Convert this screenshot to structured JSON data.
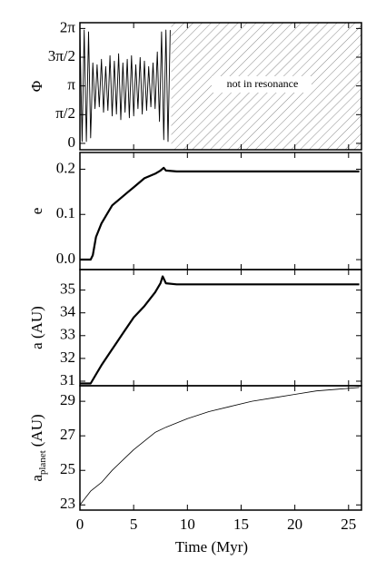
{
  "chart_data": [
    {
      "type": "line",
      "ylabel": "Φ",
      "annotation": "not in resonance",
      "hatch_start": 8.5,
      "xlim": [
        0,
        26.2
      ],
      "xticks": [
        0,
        5,
        10,
        15,
        20,
        25
      ],
      "ylim": [
        -0.35,
        6.6
      ],
      "yticks": [
        {
          "value": 0,
          "label": "0"
        },
        {
          "value": 1.5708,
          "label": "π/2"
        },
        {
          "value": 3.1416,
          "label": "π"
        },
        {
          "value": 4.7124,
          "label": "3π/2"
        },
        {
          "value": 6.2832,
          "label": "2π"
        }
      ],
      "x": [
        0,
        0.2,
        0.4,
        0.6,
        0.8,
        1.0,
        1.2,
        1.4,
        1.6,
        1.8,
        2.0,
        2.2,
        2.4,
        2.6,
        2.8,
        3.0,
        3.2,
        3.4,
        3.6,
        3.8,
        4.0,
        4.2,
        4.4,
        4.6,
        4.8,
        5.0,
        5.2,
        5.4,
        5.6,
        5.8,
        6.0,
        6.2,
        6.4,
        6.6,
        6.8,
        7.0,
        7.2,
        7.4,
        7.6,
        7.8,
        8.0,
        8.2,
        8.4
      ],
      "values": [
        6.2,
        0.1,
        6.2,
        0.1,
        6.1,
        0.3,
        4.4,
        1.9,
        4.3,
        2.0,
        4.6,
        1.7,
        4.2,
        1.8,
        4.8,
        1.5,
        4.5,
        1.6,
        4.9,
        1.3,
        4.4,
        1.7,
        4.6,
        1.4,
        4.8,
        1.5,
        4.3,
        1.9,
        4.7,
        1.6,
        4.5,
        1.8,
        4.2,
        2.0,
        4.4,
        1.9,
        5.0,
        1.2,
        6.1,
        0.2,
        6.2,
        0.1,
        6.2
      ],
      "color": "#000000"
    },
    {
      "type": "line",
      "ylabel": "e",
      "xlim": [
        0,
        26.2
      ],
      "xticks": [
        0,
        5,
        10,
        15,
        20,
        25
      ],
      "ylim": [
        -0.022,
        0.237
      ],
      "yticks": [
        {
          "value": 0,
          "label": "0.0"
        },
        0.1,
        0.2
      ],
      "x": [
        0,
        1,
        1.2,
        1.5,
        2,
        2.5,
        3,
        3.5,
        4,
        4.5,
        5,
        5.5,
        6,
        6.5,
        7,
        7.5,
        7.8,
        8,
        9,
        10,
        15,
        20,
        26
      ],
      "values": [
        0,
        0,
        0.01,
        0.05,
        0.08,
        0.1,
        0.12,
        0.13,
        0.14,
        0.15,
        0.16,
        0.17,
        0.18,
        0.185,
        0.19,
        0.197,
        0.203,
        0.197,
        0.195,
        0.195,
        0.195,
        0.195,
        0.195
      ],
      "color": "#000000"
    },
    {
      "type": "line",
      "ylabel": "a (AU)",
      "xlim": [
        0,
        26.2
      ],
      "xticks": [
        0,
        5,
        10,
        15,
        20,
        25
      ],
      "ylim": [
        30.8,
        35.9
      ],
      "yticks": [
        31,
        32,
        33,
        34,
        35
      ],
      "x": [
        0,
        1,
        1.5,
        2,
        3,
        4,
        5,
        6,
        7,
        7.5,
        7.7,
        8,
        9,
        10,
        15,
        20,
        26
      ],
      "values": [
        30.9,
        30.9,
        31.3,
        31.7,
        32.4,
        33.1,
        33.8,
        34.3,
        34.9,
        35.3,
        35.6,
        35.3,
        35.25,
        35.25,
        35.25,
        35.25,
        35.25
      ],
      "color": "#000000"
    },
    {
      "type": "line",
      "ylabel": "a",
      "ylabel_sub": "planet",
      "ylabel_unit": "(AU)",
      "xlabel": "Time (Myr)",
      "xlim": [
        0,
        26.2
      ],
      "xticks": [
        0,
        5,
        10,
        15,
        20,
        25
      ],
      "ylim": [
        22.7,
        29.9
      ],
      "yticks": [
        23,
        25,
        27,
        29
      ],
      "x": [
        0,
        1,
        2,
        3,
        4,
        5,
        6,
        7,
        8,
        10,
        12,
        14,
        16,
        18,
        20,
        22,
        24,
        26
      ],
      "values": [
        23,
        23.8,
        24.3,
        25,
        25.6,
        26.2,
        26.7,
        27.2,
        27.5,
        28,
        28.4,
        28.7,
        29,
        29.2,
        29.4,
        29.6,
        29.7,
        29.8
      ],
      "color": "#000000"
    }
  ]
}
